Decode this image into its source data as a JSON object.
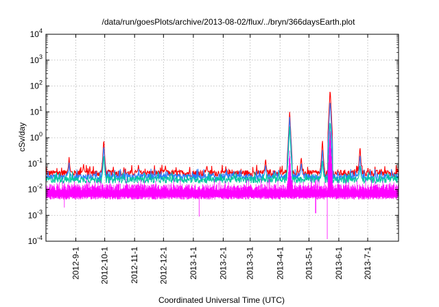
{
  "chart_data": {
    "type": "line",
    "title": "/data/run/goesPlots/archive/2013-08-02/flux/../bryn/366daysEarth.plot",
    "xlabel": "Coordinated Universal Time (UTC)",
    "ylabel": "cSv/day",
    "y_scale": "log",
    "ylim": [
      0.0001,
      10000
    ],
    "xlim": [
      "2012-08-01",
      "2013-08-02"
    ],
    "grid": true,
    "y_ticks": [
      {
        "value": 0.0001,
        "base": "10",
        "exp": "-4"
      },
      {
        "value": 0.001,
        "base": "10",
        "exp": "-3"
      },
      {
        "value": 0.01,
        "base": "10",
        "exp": "-2"
      },
      {
        "value": 0.1,
        "base": "10",
        "exp": "-1"
      },
      {
        "value": 1,
        "base": "10",
        "exp": "0"
      },
      {
        "value": 10,
        "base": "10",
        "exp": "1"
      },
      {
        "value": 100,
        "base": "10",
        "exp": "2"
      },
      {
        "value": 1000,
        "base": "10",
        "exp": "3"
      },
      {
        "value": 10000,
        "base": "10",
        "exp": "4"
      }
    ],
    "x_ticks": [
      {
        "date": "2012-09-01",
        "label": "2012-9-1"
      },
      {
        "date": "2012-10-01",
        "label": "2012-10-1"
      },
      {
        "date": "2012-11-01",
        "label": "2012-11-1"
      },
      {
        "date": "2012-12-01",
        "label": "2012-12-1"
      },
      {
        "date": "2013-01-01",
        "label": "2013-1-1"
      },
      {
        "date": "2013-02-01",
        "label": "2013-2-1"
      },
      {
        "date": "2013-03-01",
        "label": "2013-3-1"
      },
      {
        "date": "2013-04-01",
        "label": "2013-4-1"
      },
      {
        "date": "2013-05-01",
        "label": "2013-5-1"
      },
      {
        "date": "2013-06-01",
        "label": "2013-6-1"
      },
      {
        "date": "2013-07-01",
        "label": "2013-7-1"
      }
    ],
    "series": [
      {
        "color": "#ff0000",
        "baseline": 0.045,
        "events": [
          [
            "2012-08-25",
            0.18
          ],
          [
            "2012-09-09",
            0.1
          ],
          [
            "2012-09-30",
            0.95
          ],
          [
            "2012-11-05",
            0.09
          ],
          [
            "2012-12-03",
            0.085
          ],
          [
            "2013-01-15",
            0.09
          ],
          [
            "2013-03-17",
            0.17
          ],
          [
            "2013-04-11",
            11
          ],
          [
            "2013-04-23",
            0.2
          ],
          [
            "2013-05-15",
            0.9
          ],
          [
            "2013-05-23",
            80
          ],
          [
            "2013-06-23",
            0.5
          ]
        ]
      },
      {
        "color": "#2b7bff",
        "baseline": 0.032,
        "events": [
          [
            "2012-08-25",
            0.11
          ],
          [
            "2012-09-30",
            0.55
          ],
          [
            "2013-03-17",
            0.1
          ],
          [
            "2013-04-11",
            7
          ],
          [
            "2013-04-23",
            0.12
          ],
          [
            "2013-05-15",
            0.4
          ],
          [
            "2013-05-23",
            30
          ],
          [
            "2013-06-23",
            0.25
          ]
        ]
      },
      {
        "color": "#00c8a0",
        "baseline": 0.025,
        "events": [
          [
            "2012-09-30",
            0.25
          ],
          [
            "2013-04-11",
            3
          ],
          [
            "2013-05-15",
            0.15
          ],
          [
            "2013-05-23",
            5
          ],
          [
            "2013-06-23",
            0.1
          ]
        ]
      },
      {
        "color": "#ff00ff",
        "baseline": 0.013,
        "band_low": 0.0045,
        "events": [
          [
            "2013-04-11",
            0.35
          ],
          [
            "2013-05-23",
            2.5
          ]
        ],
        "dips": [
          [
            "2012-08-20",
            0.002
          ],
          [
            "2013-01-07",
            0.0009
          ],
          [
            "2013-05-08",
            0.0012
          ],
          [
            "2013-05-20",
            0.00012
          ],
          [
            "2013-08-02",
            0.0025
          ]
        ]
      }
    ]
  }
}
